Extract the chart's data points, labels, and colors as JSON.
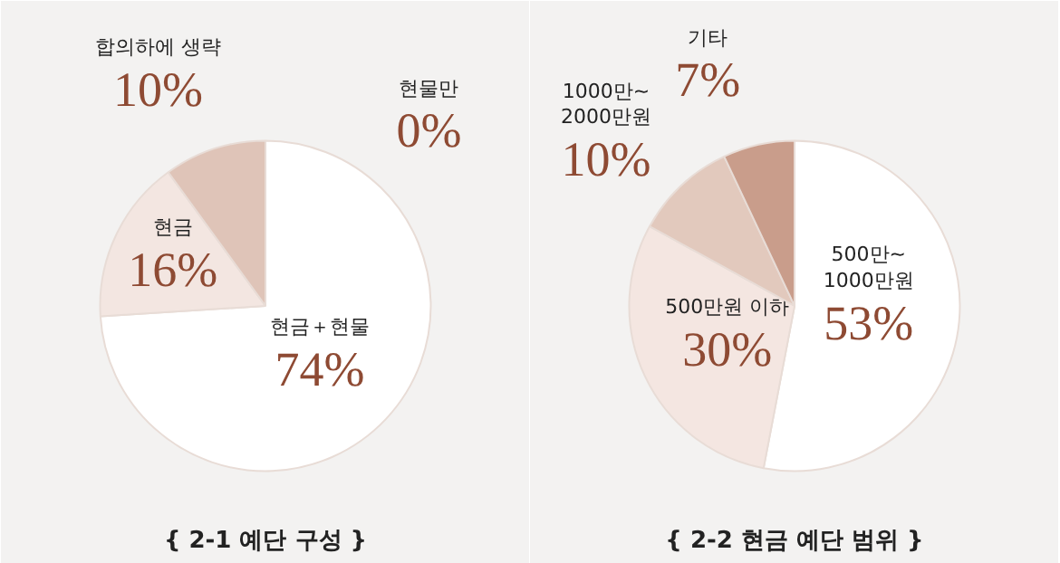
{
  "chart_data": [
    {
      "type": "pie",
      "title": "{ 2-1 예단 구성 }",
      "categories": [
        "현금＋현물",
        "현금",
        "합의하에 생략",
        "현물만"
      ],
      "values": [
        74,
        16,
        10,
        0
      ],
      "value_labels": [
        "74%",
        "16%",
        "10%",
        "0%"
      ],
      "colors": [
        "#ffffff",
        "#f3e6e1",
        "#dfc4b8",
        "#c99d8b"
      ],
      "legend": false
    },
    {
      "type": "pie",
      "title": "{ 2-2 현금 예단 범위 }",
      "categories": [
        "500만~\n1000만원",
        "500만원 이하",
        "1000만~\n2000만원",
        "기타"
      ],
      "values": [
        53,
        30,
        10,
        7
      ],
      "value_labels": [
        "53%",
        "30%",
        "10%",
        "7%"
      ],
      "colors": [
        "#ffffff",
        "#f4e6e1",
        "#e2c9bd",
        "#c99d8b"
      ],
      "legend": false
    }
  ]
}
